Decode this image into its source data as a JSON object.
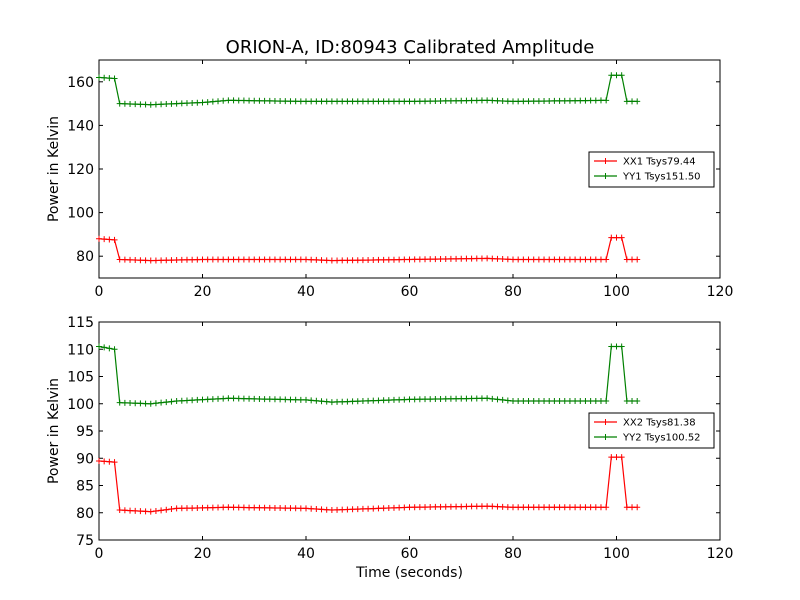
{
  "chart_data": [
    {
      "type": "line",
      "title": "ORION-A, ID:80943 Calibrated Amplitude",
      "xlabel": "",
      "ylabel": "Power in Kelvin",
      "xlim": [
        0,
        120
      ],
      "ylim": [
        70,
        170
      ],
      "xticks": [
        0,
        20,
        40,
        60,
        80,
        100,
        120
      ],
      "yticks": [
        80,
        100,
        120,
        140,
        160
      ],
      "legend_position": "center-right",
      "series": [
        {
          "name": "XX1 Tsys79.44",
          "color": "#ff0000",
          "points": [
            [
              0,
              88
            ],
            [
              3,
              87.5
            ],
            [
              4,
              78.5
            ],
            [
              10,
              78
            ],
            [
              20,
              78.5
            ],
            [
              40,
              78.5
            ],
            [
              45,
              78
            ],
            [
              60,
              78.5
            ],
            [
              75,
              79
            ],
            [
              80,
              78.5
            ],
            [
              98,
              78.5
            ],
            [
              99,
              88.5
            ],
            [
              101,
              88.5
            ],
            [
              102,
              78.5
            ],
            [
              104.5,
              78.5
            ]
          ]
        },
        {
          "name": "YY1 Tsys151.50",
          "color": "#008000",
          "points": [
            [
              0,
              162
            ],
            [
              3,
              161.5
            ],
            [
              4,
              150
            ],
            [
              10,
              149.5
            ],
            [
              20,
              150.5
            ],
            [
              25,
              151.5
            ],
            [
              40,
              151
            ],
            [
              60,
              151
            ],
            [
              75,
              151.5
            ],
            [
              80,
              151
            ],
            [
              98,
              151.5
            ],
            [
              99,
              163
            ],
            [
              101,
              163
            ],
            [
              102,
              151
            ],
            [
              104.5,
              151
            ]
          ]
        }
      ]
    },
    {
      "type": "line",
      "title": "",
      "xlabel": "Time (seconds)",
      "ylabel": "Power in Kelvin",
      "xlim": [
        0,
        120
      ],
      "ylim": [
        75,
        115
      ],
      "xticks": [
        0,
        20,
        40,
        60,
        80,
        100,
        120
      ],
      "yticks": [
        75,
        80,
        85,
        90,
        95,
        100,
        105,
        110,
        115
      ],
      "legend_position": "center-right",
      "series": [
        {
          "name": "XX2 Tsys81.38",
          "color": "#ff0000",
          "points": [
            [
              0,
              89.5
            ],
            [
              3,
              89.3
            ],
            [
              4,
              80.5
            ],
            [
              10,
              80.2
            ],
            [
              15,
              80.8
            ],
            [
              25,
              81
            ],
            [
              40,
              80.8
            ],
            [
              45,
              80.5
            ],
            [
              60,
              81
            ],
            [
              75,
              81.2
            ],
            [
              80,
              81
            ],
            [
              98,
              81
            ],
            [
              99,
              90.2
            ],
            [
              101,
              90.2
            ],
            [
              102,
              81
            ],
            [
              104.5,
              81
            ]
          ]
        },
        {
          "name": "YY2 Tsys100.52",
          "color": "#008000",
          "points": [
            [
              0,
              110.5
            ],
            [
              3,
              110
            ],
            [
              4,
              100.2
            ],
            [
              10,
              100
            ],
            [
              15,
              100.5
            ],
            [
              25,
              101
            ],
            [
              40,
              100.7
            ],
            [
              45,
              100.3
            ],
            [
              60,
              100.8
            ],
            [
              75,
              101
            ],
            [
              80,
              100.5
            ],
            [
              98,
              100.5
            ],
            [
              99,
              110.5
            ],
            [
              101,
              110.5
            ],
            [
              102,
              100.5
            ],
            [
              104.5,
              100.5
            ]
          ]
        }
      ]
    }
  ]
}
